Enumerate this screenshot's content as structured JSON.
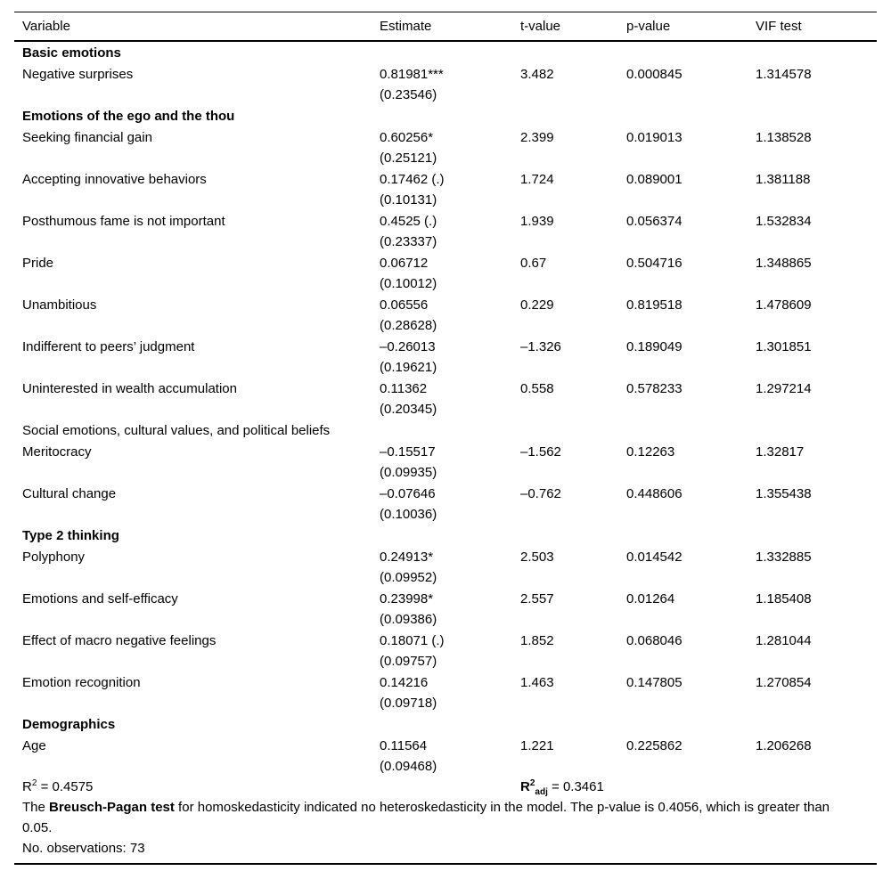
{
  "colors": {
    "background": "#ffffff",
    "text": "#000000",
    "rule": "#000000"
  },
  "table": {
    "columns": [
      "Variable",
      "Estimate",
      "t-value",
      "p-value",
      "VIF test"
    ],
    "rows": [
      {
        "type": "section",
        "bold": true,
        "label": "Basic emotions"
      },
      {
        "type": "data",
        "variable": "Negative surprises",
        "estimate": "0.81981***",
        "se": "(0.23546)",
        "t": "3.482",
        "p": "0.000845",
        "vif": "1.314578"
      },
      {
        "type": "section",
        "bold": true,
        "label": "Emotions of the ego and the thou"
      },
      {
        "type": "data",
        "variable": "Seeking financial gain",
        "estimate": "0.60256*",
        "se": "(0.25121)",
        "t": "2.399",
        "p": "0.019013",
        "vif": "1.138528"
      },
      {
        "type": "data",
        "variable": "Accepting innovative behaviors",
        "estimate": "0.17462 (.)",
        "se": "(0.10131)",
        "t": "1.724",
        "p": "0.089001",
        "vif": "1.381188"
      },
      {
        "type": "data",
        "variable": "Posthumous fame is not important",
        "estimate": "0.4525 (.)",
        "se": "(0.23337)",
        "t": "1.939",
        "p": "0.056374",
        "vif": "1.532834"
      },
      {
        "type": "data",
        "variable": "Pride",
        "estimate": "0.06712",
        "se": "(0.10012)",
        "t": "0.67",
        "p": "0.504716",
        "vif": "1.348865"
      },
      {
        "type": "data",
        "variable": "Unambitious",
        "estimate": "0.06556",
        "se": "(0.28628)",
        "t": "0.229",
        "p": "0.819518",
        "vif": "1.478609"
      },
      {
        "type": "data",
        "variable": "Indifferent to peers’ judgment",
        "estimate": "–0.26013",
        "se": "(0.19621)",
        "t": "–1.326",
        "p": "0.189049",
        "vif": "1.301851"
      },
      {
        "type": "data",
        "variable": "Uninterested in wealth accumulation",
        "estimate": "0.11362",
        "se": "(0.20345)",
        "t": "0.558",
        "p": "0.578233",
        "vif": "1.297214"
      },
      {
        "type": "section",
        "bold": false,
        "label": "Social emotions, cultural values, and political beliefs"
      },
      {
        "type": "data",
        "variable": "Meritocracy",
        "estimate": "–0.15517",
        "se": "(0.09935)",
        "t": "–1.562",
        "p": "0.12263",
        "vif": "1.32817"
      },
      {
        "type": "data",
        "variable": "Cultural change",
        "estimate": "–0.07646",
        "se": "(0.10036)",
        "t": "–0.762",
        "p": "0.448606",
        "vif": "1.355438"
      },
      {
        "type": "section",
        "bold": true,
        "label": "Type 2 thinking"
      },
      {
        "type": "data",
        "variable": "Polyphony",
        "estimate": "0.24913*",
        "se": "(0.09952)",
        "t": "2.503",
        "p": "0.014542",
        "vif": "1.332885"
      },
      {
        "type": "data",
        "variable": "Emotions and self-efficacy",
        "estimate": "0.23998*",
        "se": "(0.09386)",
        "t": "2.557",
        "p": "0.01264",
        "vif": "1.185408"
      },
      {
        "type": "data",
        "variable": "Effect of macro negative feelings",
        "estimate": "0.18071 (.)",
        "se": "(0.09757)",
        "t": "1.852",
        "p": "0.068046",
        "vif": "1.281044"
      },
      {
        "type": "data",
        "variable": "Emotion recognition",
        "estimate": "0.14216",
        "se": "(0.09718)",
        "t": "1.463",
        "p": "0.147805",
        "vif": "1.270854"
      },
      {
        "type": "section",
        "bold": true,
        "label": "Demographics"
      },
      {
        "type": "data",
        "variable": "Age",
        "estimate": "0.11564",
        "se": "(0.09468)",
        "t": "1.221",
        "p": "0.225862",
        "vif": "1.206268"
      }
    ]
  },
  "footer": {
    "r2": {
      "base": "R",
      "sup": "2",
      "rest": " = 0.4575"
    },
    "r2adj": {
      "base": "R",
      "sup": "2",
      "sub": "adj",
      "rest": " = 0.3461"
    },
    "note": {
      "prefix": "The ",
      "bold": "Breusch-Pagan test",
      "rest": " for homoskedasticity indicated no heteroskedasticity in the model. The p-value is 0.4056, which is greater than 0.05."
    },
    "observations": "No. observations: 73"
  }
}
